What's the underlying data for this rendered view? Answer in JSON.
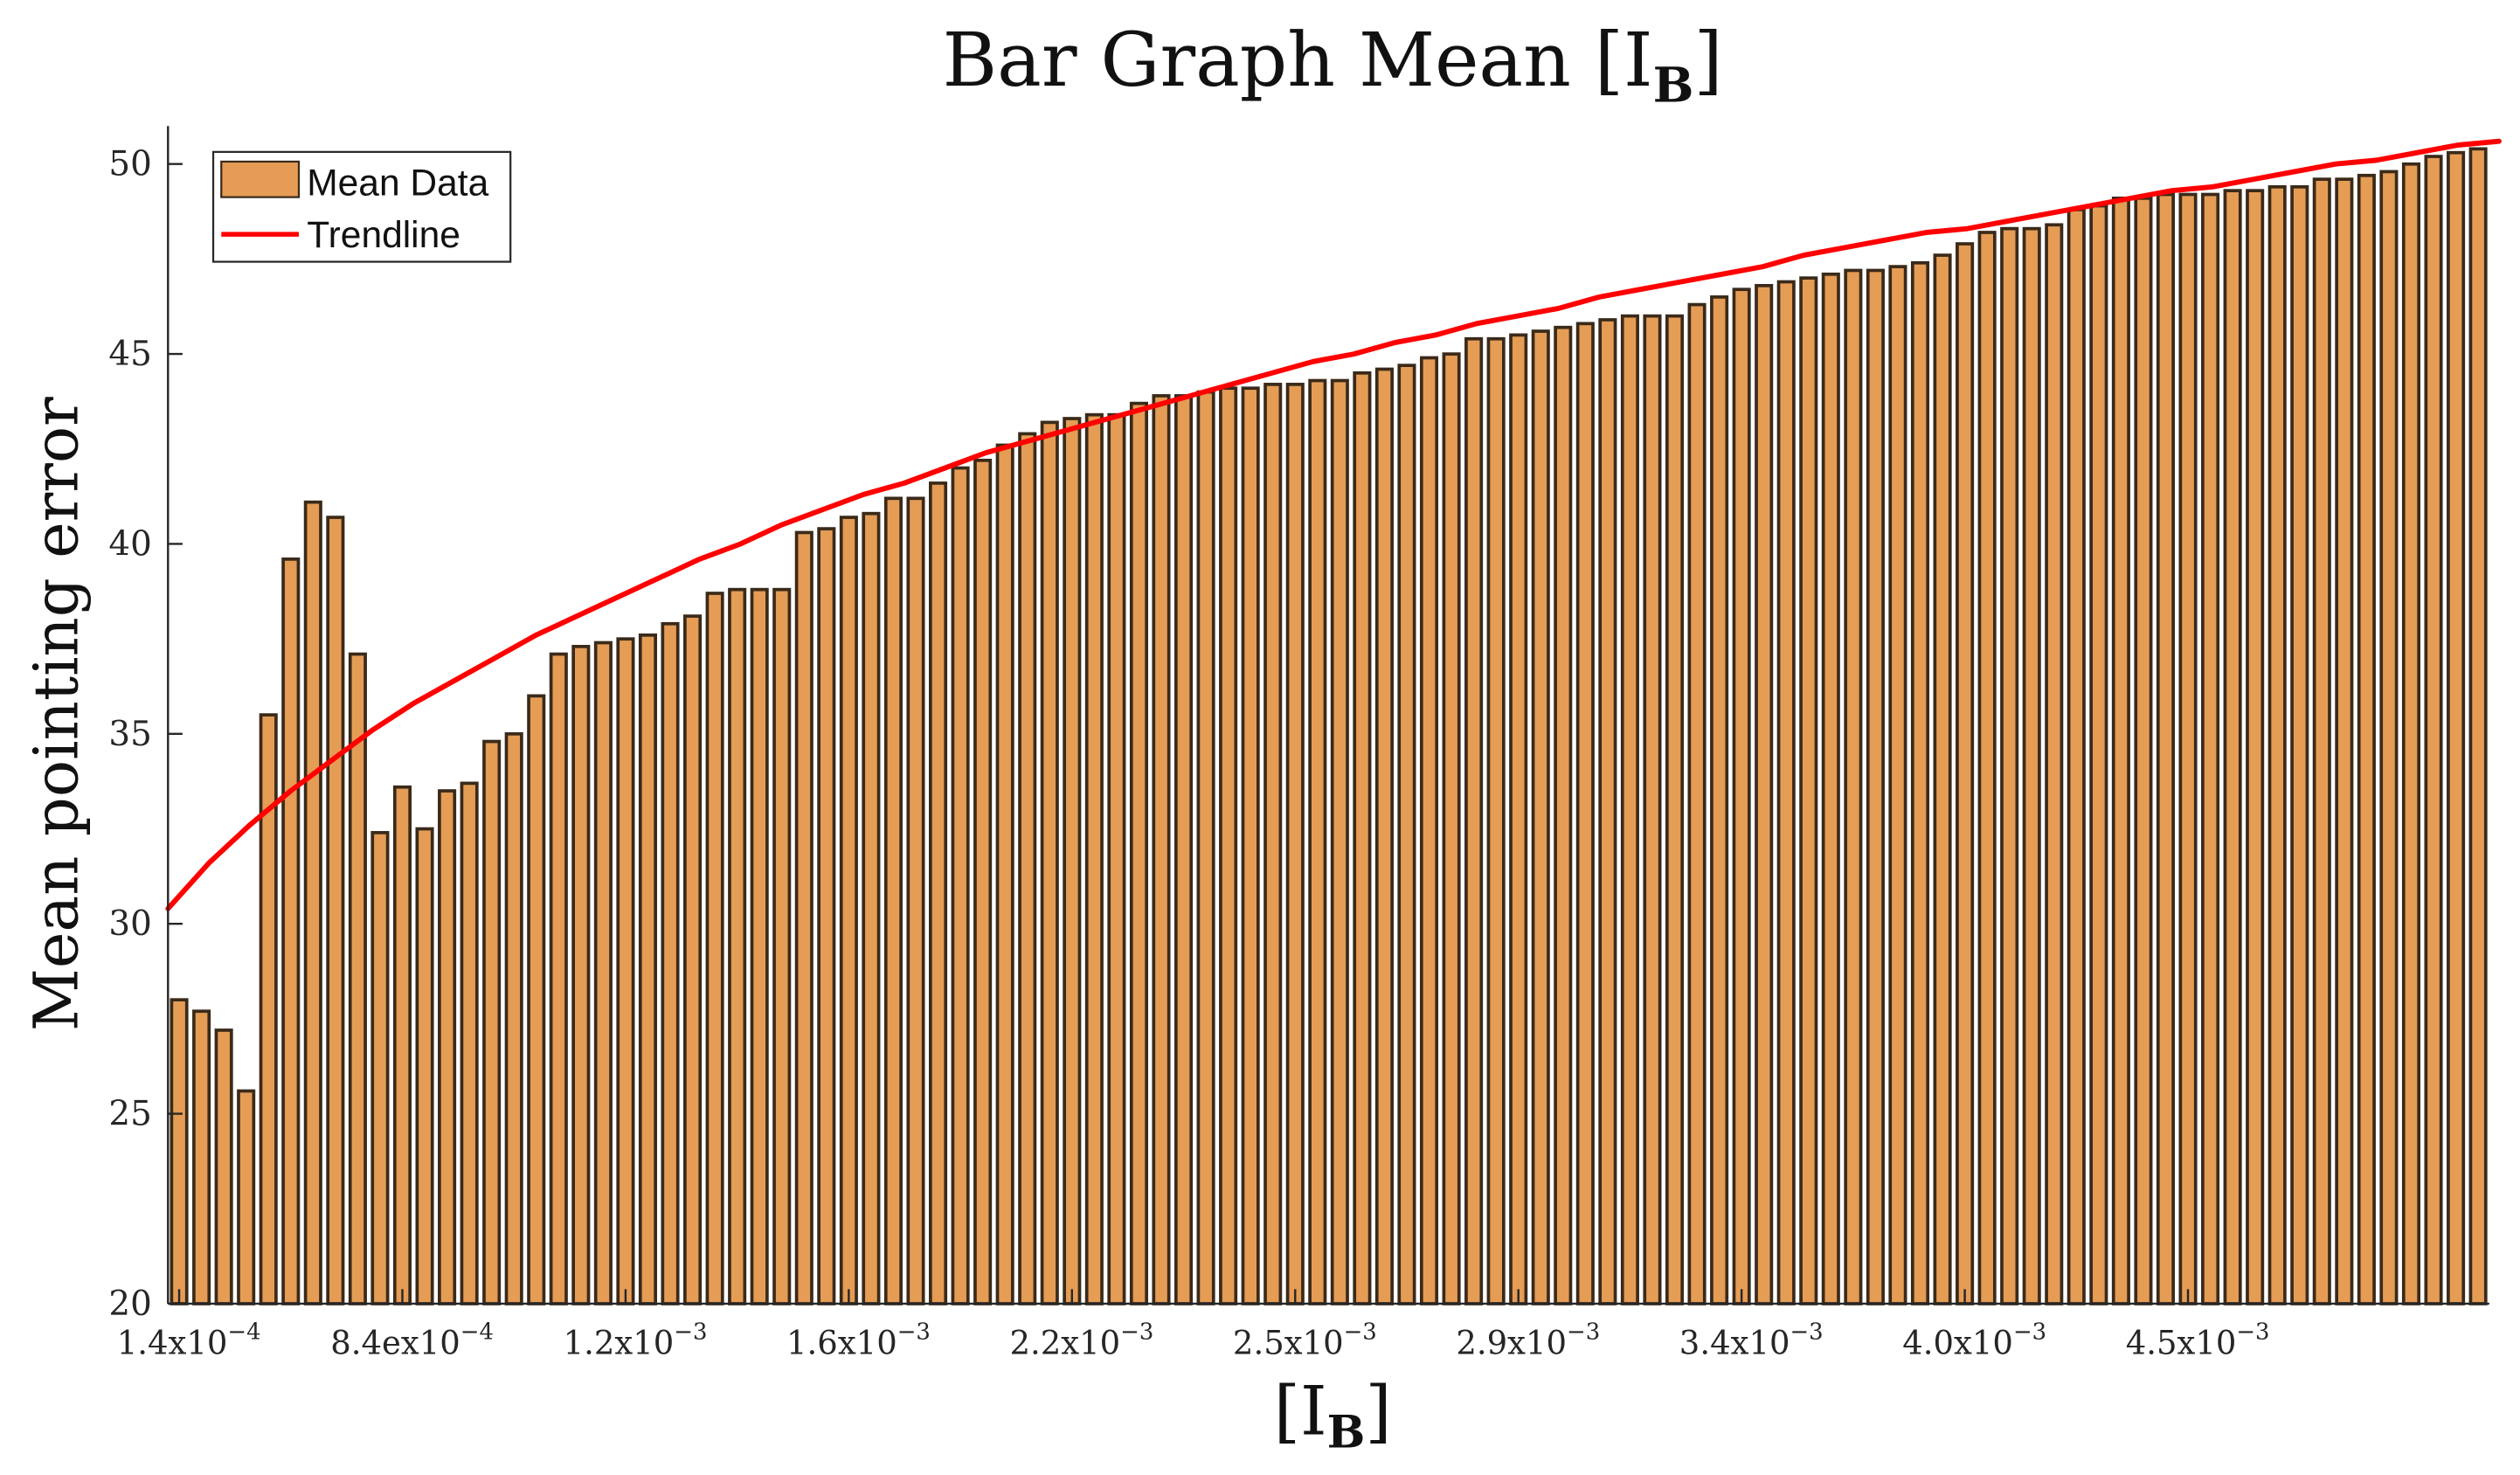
{
  "chart_data": {
    "type": "bar",
    "title": "Bar Graph Mean [I",
    "title_sub": "B",
    "title_close": "]",
    "xlabel": "[I",
    "xlabel_sub": "B",
    "xlabel_close": "]",
    "ylabel": "Mean pointing error",
    "ylim": [
      20,
      51
    ],
    "yticks": [
      "20",
      "25",
      "30",
      "35",
      "40",
      "45",
      "50"
    ],
    "grid": false,
    "legend": {
      "placement": "top-left",
      "items": [
        {
          "label": "Mean Data",
          "kind": "bar"
        },
        {
          "label": "Trendline",
          "kind": "line"
        }
      ]
    },
    "xtick_labels": [
      {
        "mant": "1.4x10",
        "exp": "−4",
        "index": 0
      },
      {
        "mant": "8.4ex10",
        "exp": "−4",
        "index": 10
      },
      {
        "mant": "1.2x10",
        "exp": "−3",
        "index": 20
      },
      {
        "mant": "1.6x10",
        "exp": "−3",
        "index": 30
      },
      {
        "mant": "2.2x10",
        "exp": "−3",
        "index": 40
      },
      {
        "mant": "2.5x10",
        "exp": "−3",
        "index": 50
      },
      {
        "mant": "2.9x10",
        "exp": "−3",
        "index": 60
      },
      {
        "mant": "3.4x10",
        "exp": "−3",
        "index": 70
      },
      {
        "mant": "4.0x10",
        "exp": "−3",
        "index": 80
      },
      {
        "mant": "4.5x10",
        "exp": "−3",
        "index": 90
      }
    ],
    "series": [
      {
        "name": "Mean Data",
        "values": [
          28.0,
          27.7,
          27.2,
          25.6,
          35.5,
          39.6,
          41.1,
          40.7,
          37.1,
          32.4,
          33.6,
          32.5,
          33.5,
          33.7,
          34.8,
          35.0,
          36.0,
          37.1,
          37.3,
          37.4,
          37.5,
          37.6,
          37.9,
          38.1,
          38.7,
          38.8,
          38.8,
          38.8,
          40.3,
          40.4,
          40.7,
          40.8,
          41.2,
          41.2,
          41.6,
          42.0,
          42.2,
          42.6,
          42.9,
          43.2,
          43.3,
          43.4,
          43.4,
          43.7,
          43.9,
          43.9,
          44.0,
          44.1,
          44.1,
          44.2,
          44.2,
          44.3,
          44.3,
          44.5,
          44.6,
          44.7,
          44.9,
          45.0,
          45.4,
          45.4,
          45.5,
          45.6,
          45.7,
          45.8,
          45.9,
          46.0,
          46.0,
          46.0,
          46.3,
          46.5,
          46.7,
          46.8,
          46.9,
          47.0,
          47.1,
          47.2,
          47.2,
          47.3,
          47.4,
          47.6,
          47.9,
          48.2,
          48.3,
          48.3,
          48.4,
          48.8,
          48.9,
          49.1,
          49.1,
          49.2,
          49.2,
          49.2,
          49.3,
          49.3,
          49.4,
          49.4,
          49.6,
          49.6,
          49.7,
          49.8,
          50.0,
          50.2,
          50.3,
          50.4
        ]
      },
      {
        "name": "Trendline",
        "values": [
          30.4,
          31.6,
          32.6,
          33.5,
          34.3,
          35.1,
          35.8,
          36.4,
          37.0,
          37.6,
          38.1,
          38.6,
          39.1,
          39.6,
          40.0,
          40.5,
          40.9,
          41.3,
          41.6,
          42.0,
          42.4,
          42.7,
          43.0,
          43.3,
          43.6,
          43.9,
          44.2,
          44.5,
          44.8,
          45.0,
          45.3,
          45.5,
          45.8,
          46.0,
          46.2,
          46.5,
          46.7,
          46.9,
          47.1,
          47.3,
          47.6,
          47.8,
          48.0,
          48.2,
          48.3,
          48.5,
          48.7,
          48.9,
          49.1,
          49.3,
          49.4,
          49.6,
          49.8,
          50.0,
          50.1,
          50.3,
          50.5,
          50.6
        ]
      }
    ]
  }
}
